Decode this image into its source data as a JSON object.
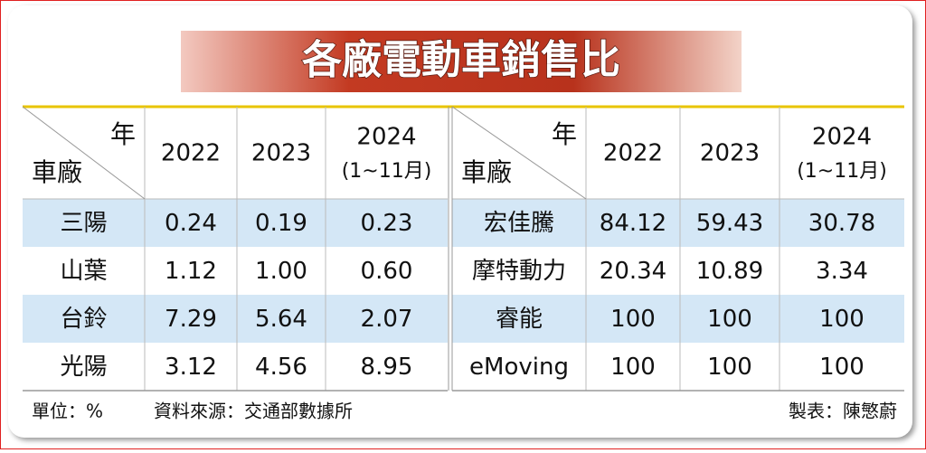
{
  "title": "各廠電動車銷售比",
  "tables": [
    {
      "corner": {
        "top": "年",
        "bottom": "車廠"
      },
      "headers": [
        {
          "year": "2022"
        },
        {
          "year": "2023"
        },
        {
          "year": "2024",
          "note": "(1~11月)"
        }
      ],
      "rows": [
        [
          "三陽",
          "0.24",
          "0.19",
          "0.23"
        ],
        [
          "山葉",
          "1.12",
          "1.00",
          "0.60"
        ],
        [
          "台鈴",
          "7.29",
          "5.64",
          "2.07"
        ],
        [
          "光陽",
          "3.12",
          "4.56",
          "8.95"
        ]
      ]
    },
    {
      "corner": {
        "top": "年",
        "bottom": "車廠"
      },
      "headers": [
        {
          "year": "2022"
        },
        {
          "year": "2023"
        },
        {
          "year": "2024",
          "note": "(1~11月)"
        }
      ],
      "rows": [
        [
          "宏佳騰",
          "84.12",
          "59.43",
          "30.78"
        ],
        [
          "摩特動力",
          "20.34",
          "10.89",
          "3.34"
        ],
        [
          "睿能",
          "100",
          "100",
          "100"
        ],
        [
          "eMoving",
          "100",
          "100",
          "100"
        ]
      ]
    }
  ],
  "footer": {
    "unit": "單位：%",
    "source": "資料來源：交通部數據所",
    "author": "製表：陳慜蔚"
  }
}
